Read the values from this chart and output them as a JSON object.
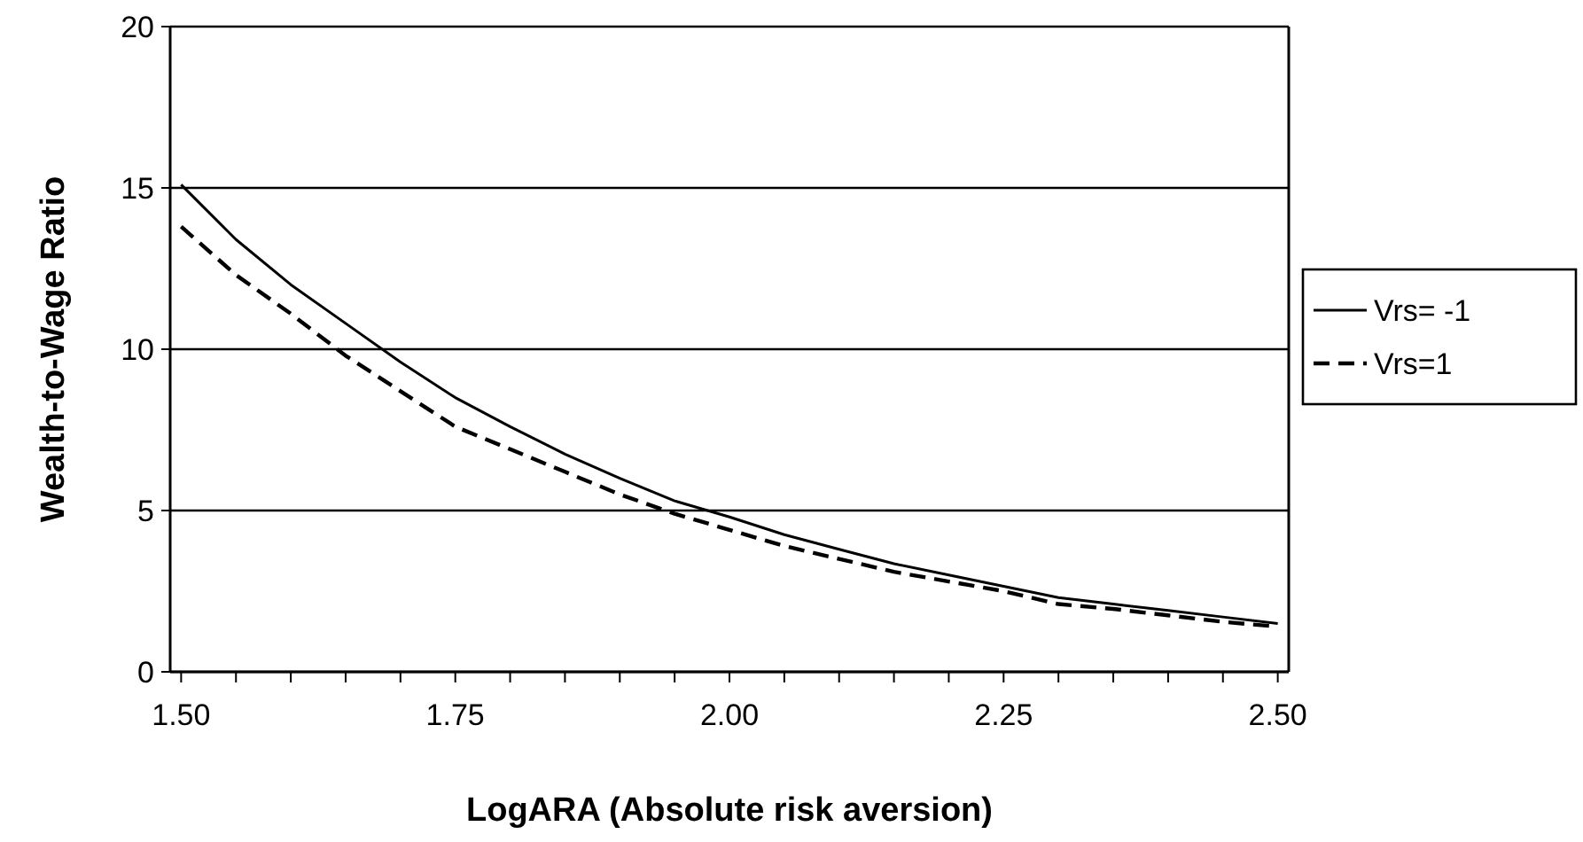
{
  "chart_data": {
    "type": "line",
    "xlabel": "LogARA (Absolute risk aversion)",
    "ylabel": "Wealth-to-Wage Ratio",
    "x": [
      1.5,
      1.55,
      1.6,
      1.65,
      1.7,
      1.75,
      1.8,
      1.85,
      1.9,
      1.95,
      2.0,
      2.05,
      2.1,
      2.15,
      2.2,
      2.25,
      2.3,
      2.35,
      2.4,
      2.45,
      2.5
    ],
    "series": [
      {
        "name": "Vrs= -1",
        "color": "#000000",
        "line_style": "solid",
        "values": [
          15.1,
          13.4,
          12.0,
          10.8,
          9.6,
          8.5,
          7.6,
          6.75,
          6.0,
          5.3,
          4.8,
          4.25,
          3.8,
          3.35,
          3.0,
          2.65,
          2.3,
          2.1,
          1.9,
          1.7,
          1.5
        ]
      },
      {
        "name": "Vrs=1",
        "color": "#000000",
        "line_style": "dashed",
        "values": [
          13.8,
          12.3,
          11.1,
          9.8,
          8.7,
          7.6,
          6.9,
          6.2,
          5.5,
          4.9,
          4.4,
          3.9,
          3.5,
          3.1,
          2.8,
          2.5,
          2.1,
          1.95,
          1.75,
          1.55,
          1.4
        ]
      }
    ],
    "xlim": [
      1.49,
      2.51
    ],
    "xticks": [
      {
        "value": 1.5,
        "label": "1.50"
      },
      {
        "value": 1.55,
        "label": null
      },
      {
        "value": 1.6,
        "label": null
      },
      {
        "value": 1.65,
        "label": null
      },
      {
        "value": 1.7,
        "label": null
      },
      {
        "value": 1.75,
        "label": "1.75"
      },
      {
        "value": 1.8,
        "label": null
      },
      {
        "value": 1.85,
        "label": null
      },
      {
        "value": 1.9,
        "label": null
      },
      {
        "value": 1.95,
        "label": null
      },
      {
        "value": 2.0,
        "label": "2.00"
      },
      {
        "value": 2.05,
        "label": null
      },
      {
        "value": 2.1,
        "label": null
      },
      {
        "value": 2.15,
        "label": null
      },
      {
        "value": 2.2,
        "label": null
      },
      {
        "value": 2.25,
        "label": "2.25"
      },
      {
        "value": 2.3,
        "label": null
      },
      {
        "value": 2.35,
        "label": null
      },
      {
        "value": 2.4,
        "label": null
      },
      {
        "value": 2.45,
        "label": null
      },
      {
        "value": 2.5,
        "label": "2.50"
      }
    ],
    "ylim": [
      0,
      20
    ],
    "yticks": [
      0,
      5,
      10,
      15,
      20
    ],
    "grid": "y",
    "legend": "right",
    "marker": "none"
  }
}
